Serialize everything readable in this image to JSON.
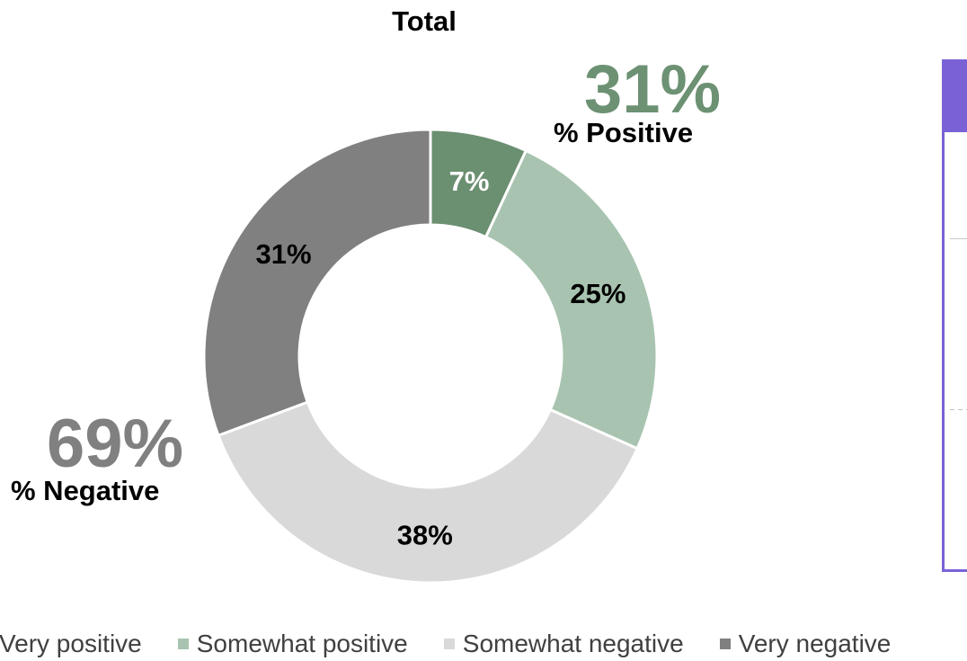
{
  "chart_data": {
    "type": "pie",
    "title": "Total",
    "hole": "donut",
    "categories": [
      "Very positive",
      "Somewhat positive",
      "Somewhat negative",
      "Very negative"
    ],
    "values": [
      7,
      25,
      38,
      31
    ],
    "labels": [
      "7%",
      "25%",
      "38%",
      "31%"
    ],
    "colors": [
      "#6b8f71",
      "#a8c4b0",
      "#d9d9d9",
      "#808080"
    ],
    "label_colors": [
      "#ffffff",
      "#000000",
      "#000000",
      "#000000"
    ],
    "legend_placement": "bottom",
    "summary": {
      "positive": {
        "value": "31%",
        "label": "% Positive",
        "color": "#6c9173"
      },
      "negative": {
        "value": "69%",
        "label": "% Negative",
        "color": "#808080"
      }
    }
  },
  "panel": {
    "accent_color": "#7a62d6"
  }
}
